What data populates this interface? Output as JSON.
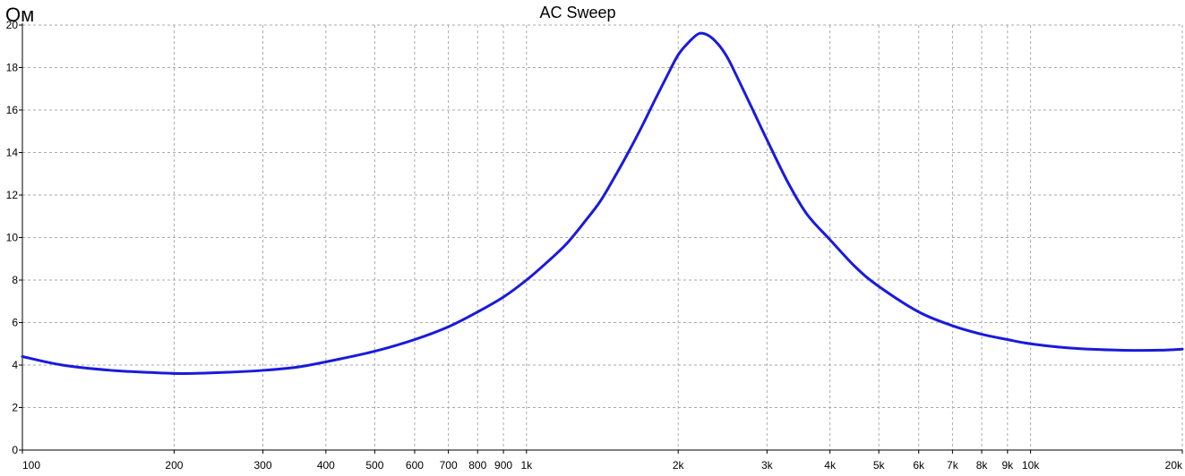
{
  "chart_data": {
    "type": "line",
    "title": "AC Sweep",
    "ylabel": "Ом",
    "xlabel": "",
    "xscale": "log",
    "xlim": [
      100,
      20000
    ],
    "ylim": [
      0,
      20
    ],
    "grid": true,
    "colors": {
      "series": "#1a1adc",
      "grid": "#aaaaaa",
      "axis": "#000000",
      "background": "#ffffff"
    },
    "x_ticks": [
      {
        "value": 100,
        "label": "100"
      },
      {
        "value": 200,
        "label": "200"
      },
      {
        "value": 300,
        "label": "300"
      },
      {
        "value": 400,
        "label": "400"
      },
      {
        "value": 500,
        "label": "500"
      },
      {
        "value": 600,
        "label": "600"
      },
      {
        "value": 700,
        "label": "700"
      },
      {
        "value": 800,
        "label": "800"
      },
      {
        "value": 900,
        "label": "900"
      },
      {
        "value": 1000,
        "label": "1k"
      },
      {
        "value": 2000,
        "label": "2k"
      },
      {
        "value": 3000,
        "label": "3k"
      },
      {
        "value": 4000,
        "label": "4k"
      },
      {
        "value": 5000,
        "label": "5k"
      },
      {
        "value": 6000,
        "label": "6k"
      },
      {
        "value": 7000,
        "label": "7k"
      },
      {
        "value": 8000,
        "label": "8k"
      },
      {
        "value": 9000,
        "label": "9k"
      },
      {
        "value": 10000,
        "label": "10k"
      },
      {
        "value": 20000,
        "label": "20k"
      }
    ],
    "y_ticks": [
      {
        "value": 0,
        "label": "0"
      },
      {
        "value": 2,
        "label": "2"
      },
      {
        "value": 4,
        "label": "4"
      },
      {
        "value": 6,
        "label": "6"
      },
      {
        "value": 8,
        "label": "8"
      },
      {
        "value": 10,
        "label": "10"
      },
      {
        "value": 12,
        "label": "12"
      },
      {
        "value": 14,
        "label": "14"
      },
      {
        "value": 16,
        "label": "16"
      },
      {
        "value": 18,
        "label": "18"
      },
      {
        "value": 20,
        "label": "20"
      }
    ],
    "series": [
      {
        "points": [
          [
            100,
            4.4
          ],
          [
            120,
            4.0
          ],
          [
            150,
            3.75
          ],
          [
            180,
            3.65
          ],
          [
            210,
            3.6
          ],
          [
            250,
            3.65
          ],
          [
            300,
            3.75
          ],
          [
            350,
            3.9
          ],
          [
            400,
            4.15
          ],
          [
            500,
            4.65
          ],
          [
            600,
            5.2
          ],
          [
            700,
            5.8
          ],
          [
            800,
            6.5
          ],
          [
            900,
            7.2
          ],
          [
            1000,
            8.0
          ],
          [
            1100,
            8.85
          ],
          [
            1200,
            9.7
          ],
          [
            1300,
            10.7
          ],
          [
            1400,
            11.7
          ],
          [
            1500,
            12.9
          ],
          [
            1600,
            14.1
          ],
          [
            1700,
            15.3
          ],
          [
            1800,
            16.5
          ],
          [
            1900,
            17.6
          ],
          [
            2000,
            18.6
          ],
          [
            2100,
            19.2
          ],
          [
            2200,
            19.6
          ],
          [
            2300,
            19.5
          ],
          [
            2400,
            19.1
          ],
          [
            2500,
            18.5
          ],
          [
            2600,
            17.7
          ],
          [
            2800,
            16.1
          ],
          [
            3000,
            14.6
          ],
          [
            3300,
            12.6
          ],
          [
            3600,
            11.1
          ],
          [
            4000,
            9.9
          ],
          [
            4500,
            8.6
          ],
          [
            5000,
            7.7
          ],
          [
            6000,
            6.5
          ],
          [
            7000,
            5.85
          ],
          [
            8000,
            5.45
          ],
          [
            9000,
            5.2
          ],
          [
            10000,
            5.0
          ],
          [
            12000,
            4.8
          ],
          [
            15000,
            4.7
          ],
          [
            18000,
            4.7
          ],
          [
            20000,
            4.75
          ]
        ]
      }
    ]
  }
}
